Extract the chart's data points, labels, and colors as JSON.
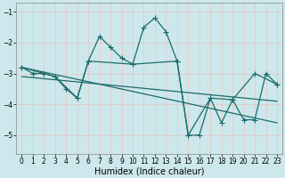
{
  "xlabel": "Humidex (Indice chaleur)",
  "bg_color": "#cce8ec",
  "grid_color": "#e8c8c8",
  "line_color": "#1a6b6b",
  "xlim": [
    -0.5,
    23.5
  ],
  "ylim": [
    -5.6,
    -0.7
  ],
  "yticks": [
    -5,
    -4,
    -3,
    -2,
    -1
  ],
  "xticks": [
    0,
    1,
    2,
    3,
    4,
    5,
    6,
    7,
    8,
    9,
    10,
    11,
    12,
    13,
    14,
    15,
    16,
    17,
    18,
    19,
    20,
    21,
    22,
    23
  ],
  "line1_x": [
    0,
    1,
    2,
    3,
    4,
    5,
    6,
    7,
    8,
    9,
    10,
    11,
    12,
    13,
    14,
    15,
    16,
    17,
    18,
    19,
    20,
    21,
    22,
    23
  ],
  "line1_y": [
    -2.8,
    -3.0,
    -3.0,
    -3.1,
    -3.5,
    -3.8,
    -2.6,
    -1.8,
    -2.15,
    -2.5,
    -2.7,
    -1.5,
    -1.2,
    -1.65,
    -2.6,
    -5.0,
    -5.0,
    -3.8,
    -4.6,
    -3.85,
    -4.5,
    -4.5,
    -3.0,
    -3.35
  ],
  "line2_x": [
    0,
    3,
    5,
    6,
    10,
    14,
    15,
    17,
    19,
    21,
    23
  ],
  "line2_y": [
    -2.8,
    -3.1,
    -3.8,
    -2.6,
    -2.7,
    -2.6,
    -5.0,
    -3.8,
    -3.85,
    -3.0,
    -3.35
  ],
  "line3_x": [
    0,
    23
  ],
  "line3_y": [
    -2.8,
    -4.6
  ],
  "line4_x": [
    0,
    23
  ],
  "line4_y": [
    -3.1,
    -3.9
  ],
  "marker": "+",
  "markersize": 4,
  "linewidth": 0.9,
  "tick_fontsize": 5.5,
  "xlabel_fontsize": 7
}
